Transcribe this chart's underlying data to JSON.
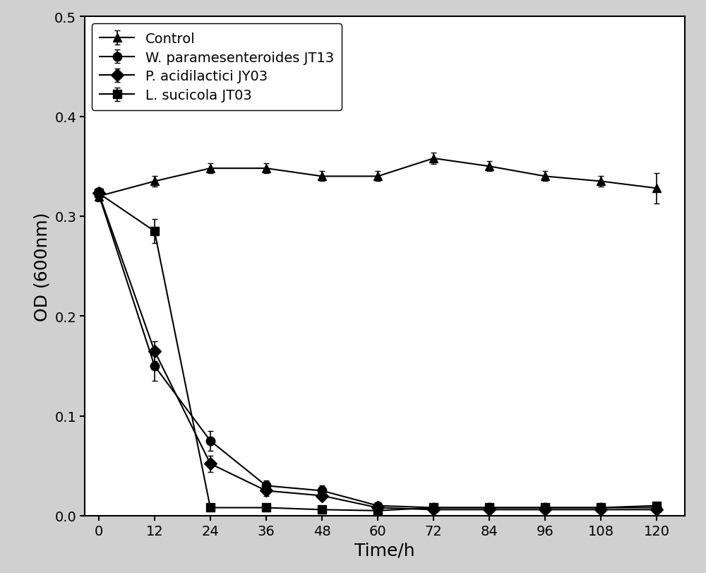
{
  "time": [
    0,
    12,
    24,
    36,
    48,
    60,
    72,
    84,
    96,
    108,
    120
  ],
  "control": [
    0.32,
    0.335,
    0.348,
    0.348,
    0.34,
    0.34,
    0.358,
    0.35,
    0.34,
    0.335,
    0.328
  ],
  "control_err": [
    0.005,
    0.005,
    0.005,
    0.005,
    0.005,
    0.005,
    0.006,
    0.005,
    0.005,
    0.005,
    0.015
  ],
  "w_par": [
    0.322,
    0.15,
    0.075,
    0.03,
    0.025,
    0.01,
    0.008,
    0.008,
    0.008,
    0.008,
    0.008
  ],
  "w_par_err": [
    0.005,
    0.015,
    0.01,
    0.005,
    0.005,
    0.002,
    0.002,
    0.002,
    0.002,
    0.002,
    0.002
  ],
  "p_acid": [
    0.323,
    0.165,
    0.052,
    0.025,
    0.02,
    0.008,
    0.006,
    0.006,
    0.006,
    0.006,
    0.006
  ],
  "p_acid_err": [
    0.005,
    0.01,
    0.008,
    0.005,
    0.004,
    0.002,
    0.002,
    0.002,
    0.002,
    0.002,
    0.002
  ],
  "l_suc": [
    0.323,
    0.285,
    0.008,
    0.008,
    0.006,
    0.005,
    0.008,
    0.008,
    0.008,
    0.008,
    0.01
  ],
  "l_suc_err": [
    0.005,
    0.012,
    0.002,
    0.002,
    0.002,
    0.002,
    0.002,
    0.002,
    0.002,
    0.002,
    0.002
  ],
  "xlabel": "Time/h",
  "ylabel": "OD (600nm)",
  "xlim": [
    -3,
    126
  ],
  "ylim": [
    0,
    0.5
  ],
  "xticks": [
    0,
    12,
    24,
    36,
    48,
    60,
    72,
    84,
    96,
    108,
    120
  ],
  "yticks": [
    0.0,
    0.1,
    0.2,
    0.3,
    0.4,
    0.5
  ],
  "legend_labels": [
    "Control",
    "W. paramesenteroides JT13",
    "P. acidilactici JY03",
    "L. sucicola JT03"
  ],
  "markers": [
    "^",
    "o",
    "D",
    "s"
  ],
  "line_color": "#000000",
  "marker_facecolor": "#000000",
  "marker_size": 9,
  "line_width": 1.5,
  "capsize": 3,
  "elinewidth": 1.2,
  "legend_fontsize": 14,
  "axis_label_fontsize": 18,
  "tick_fontsize": 14,
  "background_color": "#ffffff",
  "fig_facecolor": "#d0d0d0"
}
